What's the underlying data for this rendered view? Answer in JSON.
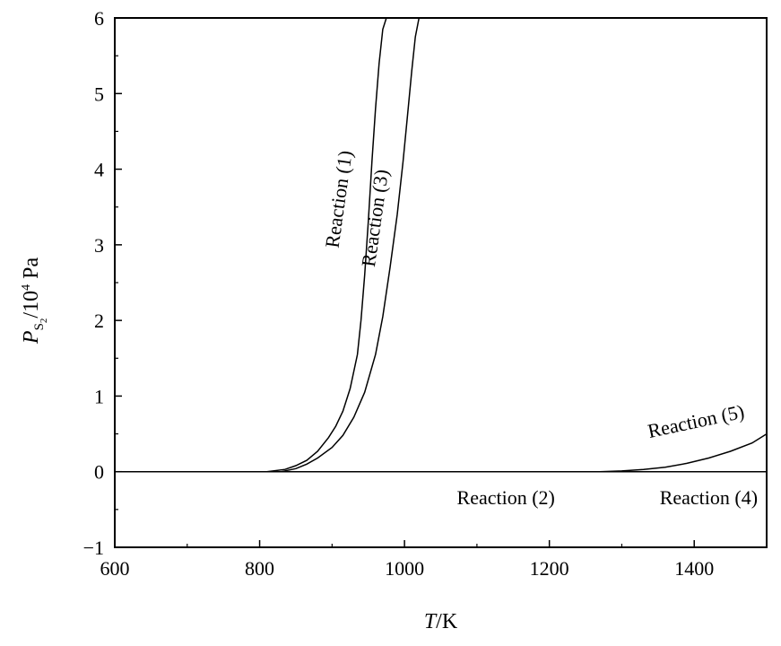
{
  "chart_data": {
    "type": "line",
    "xlabel": {
      "italic": "T",
      "rest": "/K"
    },
    "ylabel": {
      "italic": "P",
      "sub": "S",
      "subsub": "2",
      "rest_pre": "/10",
      "sup": "4",
      "rest_post": " Pa"
    },
    "xlim": [
      600,
      1500
    ],
    "ylim": [
      -1,
      6
    ],
    "x_ticks": [
      600,
      800,
      1000,
      1200,
      1400
    ],
    "x_tick_labels": [
      "600",
      "800",
      "1000",
      "1200",
      "1400"
    ],
    "y_ticks": [
      -1,
      0,
      1,
      2,
      3,
      4,
      5,
      6
    ],
    "y_tick_labels": [
      "−1",
      "0",
      "1",
      "2",
      "3",
      "4",
      "5",
      "6"
    ],
    "grid": false,
    "baseline_y": 0,
    "series": [
      {
        "name": "Reaction (1)",
        "x": [
          810,
          835,
          850,
          865,
          880,
          895,
          905,
          915,
          925,
          935,
          940,
          945,
          950,
          955,
          960,
          965,
          970,
          975
        ],
        "y": [
          0,
          0.03,
          0.08,
          0.15,
          0.27,
          0.45,
          0.6,
          0.8,
          1.1,
          1.55,
          2.0,
          2.6,
          3.3,
          4.1,
          4.8,
          5.4,
          5.85,
          6.0
        ]
      },
      {
        "name": "Reaction (3)",
        "x": [
          830,
          850,
          865,
          880,
          900,
          915,
          930,
          945,
          960,
          970,
          980,
          990,
          998,
          1005,
          1010,
          1015,
          1020
        ],
        "y": [
          0,
          0.04,
          0.1,
          0.18,
          0.32,
          0.48,
          0.72,
          1.05,
          1.55,
          2.05,
          2.7,
          3.4,
          4.1,
          4.8,
          5.3,
          5.75,
          6.0
        ]
      },
      {
        "name": "Reaction (2)",
        "x": [
          600,
          1500
        ],
        "y": [
          0,
          0
        ]
      },
      {
        "name": "Reaction (4)",
        "x": [
          1270,
          1500
        ],
        "y": [
          0,
          0
        ]
      },
      {
        "name": "Reaction (5)",
        "x": [
          1270,
          1300,
          1330,
          1360,
          1390,
          1420,
          1450,
          1480,
          1500
        ],
        "y": [
          0,
          0.01,
          0.03,
          0.06,
          0.11,
          0.18,
          0.27,
          0.38,
          0.5
        ]
      }
    ],
    "annotations": [
      {
        "text": "Reaction (1)",
        "x": 912,
        "y": 3.6,
        "rotate": -82
      },
      {
        "text": "Reaction (3)",
        "x": 962,
        "y": 3.35,
        "rotate": -82
      },
      {
        "text": "Reaction (2)",
        "x": 1140,
        "y": -0.37,
        "rotate": 0
      },
      {
        "text": "Reaction (4)",
        "x": 1420,
        "y": -0.37,
        "rotate": 0
      },
      {
        "text": "Reaction (5)",
        "x": 1403,
        "y": 0.64,
        "rotate": -12
      }
    ]
  }
}
